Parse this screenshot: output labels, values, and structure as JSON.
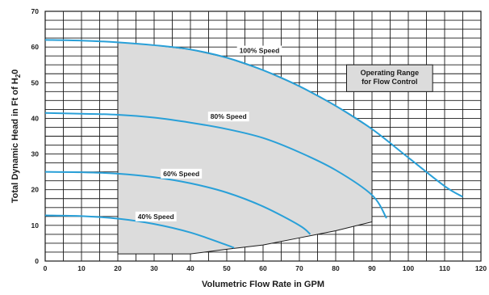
{
  "chart_data": {
    "type": "line",
    "xlabel": "Volumetric Flow Rate in GPM",
    "ylabel": {
      "prefix": "Total Dynamic Head in Ft of H",
      "sub": "2",
      "suffix": "0"
    },
    "xlim": [
      0,
      120
    ],
    "ylim": [
      0,
      70
    ],
    "x_ticks": [
      0,
      10,
      20,
      30,
      40,
      50,
      60,
      70,
      80,
      90,
      100,
      110,
      120
    ],
    "y_ticks": [
      0,
      10,
      20,
      30,
      40,
      50,
      60,
      70
    ],
    "grid": {
      "x_minor_step": 5,
      "y_minor_step": 2.5
    },
    "series": [
      {
        "name": "100% Speed",
        "label_at": [
          59,
          59
        ],
        "points": [
          [
            0,
            62
          ],
          [
            10,
            61.8
          ],
          [
            20,
            61.3
          ],
          [
            30,
            60.5
          ],
          [
            40,
            59.3
          ],
          [
            50,
            57
          ],
          [
            60,
            53.5
          ],
          [
            70,
            49
          ],
          [
            80,
            43.5
          ],
          [
            90,
            37
          ],
          [
            100,
            29
          ],
          [
            110,
            21
          ],
          [
            115,
            18
          ]
        ]
      },
      {
        "name": "80% Speed",
        "label_at": [
          50.5,
          40.5
        ],
        "points": [
          [
            0,
            41.5
          ],
          [
            10,
            41.3
          ],
          [
            20,
            41
          ],
          [
            30,
            40.2
          ],
          [
            40,
            38.8
          ],
          [
            50,
            37
          ],
          [
            60,
            34.5
          ],
          [
            70,
            30.5
          ],
          [
            80,
            25.5
          ],
          [
            90,
            18.5
          ],
          [
            94,
            12
          ]
        ]
      },
      {
        "name": "60% Speed",
        "label_at": [
          37.5,
          24.5
        ],
        "points": [
          [
            0,
            25
          ],
          [
            10,
            24.9
          ],
          [
            20,
            24.5
          ],
          [
            30,
            23.5
          ],
          [
            40,
            21.8
          ],
          [
            50,
            19.2
          ],
          [
            60,
            15.3
          ],
          [
            70,
            10
          ],
          [
            73,
            7.5
          ]
        ]
      },
      {
        "name": "40% Speed",
        "label_at": [
          30.5,
          12.5
        ],
        "points": [
          [
            0,
            12.8
          ],
          [
            10,
            12.6
          ],
          [
            20,
            11.9
          ],
          [
            30,
            10.4
          ],
          [
            40,
            8
          ],
          [
            50,
            4.5
          ],
          [
            52,
            3.7
          ]
        ]
      }
    ],
    "operating_range": {
      "label_lines": [
        "Operating Range",
        "for Flow Control"
      ],
      "region": [
        [
          20,
          61.3
        ],
        [
          30,
          60.5
        ],
        [
          40,
          59.3
        ],
        [
          50,
          57
        ],
        [
          60,
          53.5
        ],
        [
          70,
          49
        ],
        [
          80,
          43.5
        ],
        [
          90,
          37
        ],
        [
          90,
          11
        ],
        [
          80,
          8.5
        ],
        [
          70,
          6.5
        ],
        [
          60,
          4.5
        ],
        [
          50,
          3.3
        ],
        [
          40,
          2
        ],
        [
          20,
          2
        ]
      ],
      "fill_color": "#dcdcdc"
    },
    "colors": {
      "curve": "#29a0d8",
      "grid": "#1a1a1a",
      "boundary": "#1a1a1a"
    }
  }
}
